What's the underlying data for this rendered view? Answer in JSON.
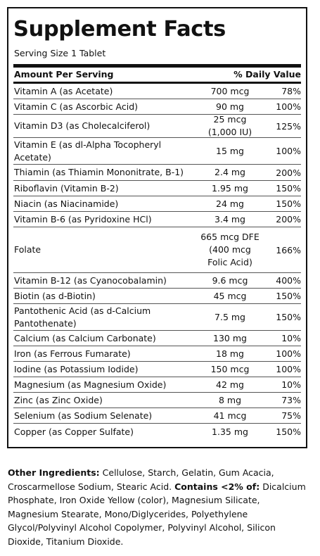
{
  "title": "Supplement Facts",
  "serving_size": "Serving Size 1 Tablet",
  "header": {
    "amount_per_serving": "Amount Per Serving",
    "daily_value": "% Daily Value"
  },
  "nutrients": [
    {
      "name": "Vitamin A (as Acetate)",
      "amount": "700 mcg",
      "dv": "78%"
    },
    {
      "name": "Vitamin C (as Ascorbic Acid)",
      "amount": "90 mg",
      "dv": "100%"
    },
    {
      "name": "Vitamin D3 (as Cholecalciferol)",
      "amount": "25 mcg\n(1,000 IU)",
      "dv": "125%"
    },
    {
      "name": "Vitamin E (as dl-Alpha Tocopheryl\nAcetate)",
      "amount": "15 mg",
      "dv": "100%"
    },
    {
      "name": "Thiamin (as Thiamin Mononitrate, B-1)",
      "amount": "2.4 mg",
      "dv": "200%"
    },
    {
      "name": "Riboflavin (Vitamin B-2)",
      "amount": "1.95 mg",
      "dv": "150%"
    },
    {
      "name": "Niacin (as Niacinamide)",
      "amount": "24 mg",
      "dv": "150%"
    },
    {
      "name": "Vitamin B-6 (as Pyridoxine HCl)",
      "amount": "3.4 mg",
      "dv": "200%"
    },
    {
      "name": "Folate",
      "amount": "665 mcg DFE\n(400 mcg\nFolic Acid)",
      "dv": "166%"
    },
    {
      "name": "Vitamin B-12 (as Cyanocobalamin)",
      "amount": "9.6 mcg",
      "dv": "400%"
    },
    {
      "name": "Biotin (as d-Biotin)",
      "amount": "45 mcg",
      "dv": "150%"
    },
    {
      "name": "Pantothenic Acid (as d-Calcium\nPantothenate)",
      "amount": "7.5 mg",
      "dv": "150%"
    },
    {
      "name": "Calcium (as Calcium Carbonate)",
      "amount": "130 mg",
      "dv": "10%"
    },
    {
      "name": "Iron (as Ferrous Fumarate)",
      "amount": "18 mg",
      "dv": "100%"
    },
    {
      "name": "Iodine (as Potassium Iodide)",
      "amount": "150 mcg",
      "dv": "100%"
    },
    {
      "name": "Magnesium (as Magnesium Oxide)",
      "amount": "42 mg",
      "dv": "10%"
    },
    {
      "name": "Zinc (as Zinc Oxide)",
      "amount": "8 mg",
      "dv": "73%"
    },
    {
      "name": "Selenium (as Sodium Selenate)",
      "amount": "41 mcg",
      "dv": "75%"
    },
    {
      "name": "Copper (as Copper Sulfate)",
      "amount": "1.35 mg",
      "dv": "150%"
    }
  ],
  "other_ingredients": {
    "label": "Other Ingredients:",
    "text": " Cellulose, Starch, Gelatin, Gum Acacia, Croscarmellose Sodium, Stearic Acid. ",
    "contains_label": "Contains <2% of:",
    "contains_text": " Dicalcium Phosphate, Iron Oxide Yellow (color), Magnesium Silicate, Magnesium Stearate, Mono/Diglycerides, Polyethylene Glycol/Polyvinyl Alcohol Copolymer, Polyvinyl Alcohol, Silicon Dioxide, Titanium Dioxide."
  }
}
